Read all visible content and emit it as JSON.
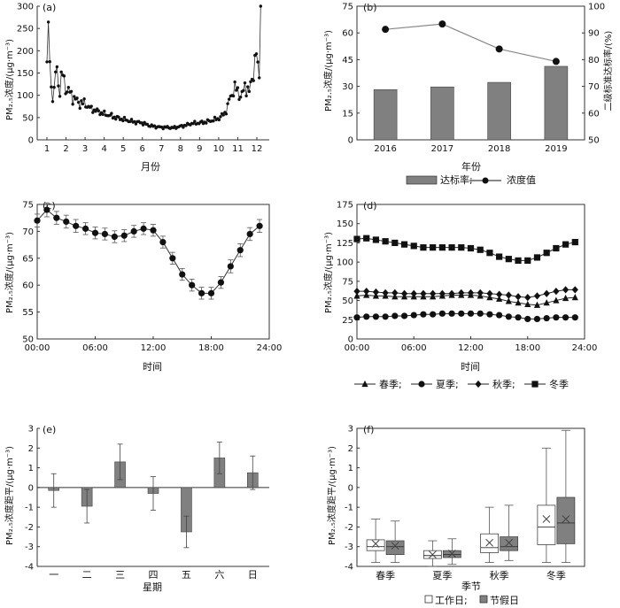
{
  "panels": {
    "a": {
      "label": "(a)",
      "ylabel": "PM₂.₅浓度/(μg·m⁻³)",
      "xlabel": "月份"
    },
    "b": {
      "label": "(b)",
      "ylabel_left": "PM₂.₅浓度/(μg·m⁻³)",
      "ylabel_right": "二级标准达标率/(%)",
      "xlabel": "年份",
      "legend_bar": "达标率;",
      "legend_line": "浓度值"
    },
    "c": {
      "label": "(c)",
      "ylabel": "PM₂.₅浓度/(μg·m⁻³)",
      "xlabel": "时间"
    },
    "d": {
      "label": "(d)",
      "ylabel": "PM₂.₅浓度/(μg·m⁻³)",
      "xlabel": "时间"
    },
    "e": {
      "label": "(e)",
      "ylabel": "PM₂.₅浓度距平/(μg·m⁻³)",
      "xlabel": "星期"
    },
    "f": {
      "label": "(f)",
      "ylabel": "PM₂.₅浓度距平/(μg·m⁻³)",
      "xlabel": "季节",
      "legend_work": "工作日;",
      "legend_holiday": "节假日"
    }
  },
  "chart_data": [
    {
      "id": "a",
      "type": "line",
      "x_ticks": [
        1,
        2,
        3,
        4,
        5,
        6,
        7,
        8,
        9,
        10,
        11,
        12
      ],
      "ylim": [
        0,
        300
      ],
      "yticks": [
        0,
        50,
        100,
        150,
        200,
        250,
        300
      ],
      "anchors_x": [
        1,
        1.05,
        1.1,
        1.2,
        1.35,
        1.5,
        1.65,
        1.8,
        2,
        2.3,
        2.6,
        3,
        3.3,
        3.6,
        4,
        4.3,
        4.6,
        5,
        5.3,
        5.6,
        6,
        6.3,
        6.6,
        7,
        7.3,
        7.6,
        8,
        8.3,
        8.6,
        9,
        9.3,
        9.6,
        10,
        10.2,
        10.4,
        10.6,
        10.8,
        11,
        11.2,
        11.4,
        11.6,
        11.8,
        12,
        12.1,
        12.2
      ],
      "anchors_y": [
        175,
        230,
        240,
        120,
        95,
        170,
        105,
        150,
        115,
        100,
        85,
        80,
        70,
        65,
        58,
        55,
        50,
        46,
        43,
        40,
        38,
        33,
        30,
        28,
        28,
        27,
        30,
        33,
        37,
        38,
        40,
        43,
        48,
        55,
        65,
        95,
        115,
        110,
        95,
        125,
        105,
        150,
        200,
        110,
        300
      ],
      "n_points": 150,
      "color": "#333333"
    },
    {
      "id": "b",
      "type": "bar+line",
      "categories": [
        "2016",
        "2017",
        "2018",
        "2019"
      ],
      "bar_values": [
        68.8,
        69.8,
        71.5,
        77.5
      ],
      "line_values": [
        62,
        65,
        51,
        44
      ],
      "ylim_left": [
        0,
        75
      ],
      "yticks_left": [
        0,
        15,
        30,
        45,
        60,
        75
      ],
      "ylim_right": [
        50,
        100
      ],
      "yticks_right": [
        50,
        60,
        70,
        80,
        90,
        100
      ],
      "bar_color": "#808080",
      "line_color": "#888888",
      "marker_color": "#111111"
    },
    {
      "id": "c",
      "type": "line",
      "x": [
        0,
        1,
        2,
        3,
        4,
        5,
        6,
        7,
        8,
        9,
        10,
        11,
        12,
        13,
        14,
        15,
        16,
        17,
        18,
        19,
        20,
        21,
        22,
        23
      ],
      "y": [
        72,
        74,
        72.5,
        71.8,
        71,
        70.5,
        69.7,
        69.5,
        69,
        69.2,
        70,
        70.5,
        70.2,
        68,
        65,
        62,
        60,
        58.5,
        58.5,
        60.5,
        63.5,
        66.5,
        69.5,
        71
      ],
      "err": [
        1.2,
        1.3,
        1.2,
        1.2,
        1.2,
        1.1,
        1.1,
        1.1,
        1.1,
        1.1,
        1.1,
        1.1,
        1.1,
        1.1,
        1.1,
        1.1,
        1.1,
        1.1,
        1.1,
        1.1,
        1.2,
        1.2,
        1.2,
        1.2
      ],
      "xtick_labels": [
        "00:00",
        "06:00",
        "12:00",
        "18:00",
        "24:00"
      ],
      "ylim": [
        50,
        75
      ],
      "yticks": [
        50,
        55,
        60,
        65,
        70,
        75
      ]
    },
    {
      "id": "d",
      "type": "line",
      "x": [
        0,
        1,
        2,
        3,
        4,
        5,
        6,
        7,
        8,
        9,
        10,
        11,
        12,
        13,
        14,
        15,
        16,
        17,
        18,
        19,
        20,
        21,
        22,
        23
      ],
      "series": [
        {
          "name": "春季",
          "marker": "triangle",
          "values": [
            56,
            57,
            56,
            56,
            55,
            55,
            55,
            55,
            55,
            56,
            57,
            57,
            57,
            56,
            54,
            52,
            49,
            47,
            45,
            44,
            47,
            50,
            53,
            54
          ]
        },
        {
          "name": "夏季",
          "marker": "circle",
          "values": [
            28,
            29,
            29,
            29,
            30,
            30,
            31,
            32,
            32,
            33,
            33,
            33,
            33,
            33,
            32,
            31,
            29,
            28,
            26,
            26,
            27,
            28,
            28,
            28
          ]
        },
        {
          "name": "秋季",
          "marker": "diamond",
          "values": [
            62,
            62,
            61,
            60,
            60,
            59,
            59,
            59,
            59,
            59,
            59,
            60,
            60,
            60,
            59,
            58,
            57,
            55,
            54,
            56,
            59,
            62,
            64,
            64
          ]
        },
        {
          "name": "冬季",
          "marker": "square",
          "values": [
            130,
            131,
            129,
            127,
            125,
            123,
            121,
            119,
            119,
            119,
            119,
            119,
            118,
            116,
            112,
            107,
            104,
            102,
            102,
            106,
            112,
            118,
            123,
            126
          ]
        }
      ],
      "xtick_labels": [
        "00:00",
        "06:00",
        "12:00",
        "18:00",
        "24:00"
      ],
      "ylim": [
        0,
        175
      ],
      "yticks": [
        0,
        25,
        50,
        75,
        100,
        125,
        150,
        175
      ]
    },
    {
      "id": "e",
      "type": "bar",
      "categories": [
        "一",
        "二",
        "三",
        "四",
        "五",
        "六",
        "日"
      ],
      "values": [
        -0.15,
        -0.95,
        1.3,
        -0.3,
        -2.25,
        1.5,
        0.75
      ],
      "err": [
        0.85,
        0.85,
        0.9,
        0.85,
        0.8,
        0.8,
        0.85
      ],
      "ylim": [
        -4,
        3
      ],
      "yticks": [
        -4,
        -3,
        -2,
        -1,
        0,
        1,
        2,
        3
      ],
      "bar_color": "#808080"
    },
    {
      "id": "f",
      "type": "box",
      "categories": [
        "春季",
        "夏季",
        "秋季",
        "冬季"
      ],
      "series": [
        {
          "name": "工作日",
          "fill": "#ffffff",
          "boxes": [
            {
              "min": -3.8,
              "q1": -3.2,
              "median": -3.0,
              "q3": -2.65,
              "max": -1.6,
              "mean": -2.85
            },
            {
              "min": -4.0,
              "q1": -3.6,
              "median": -3.45,
              "q3": -3.2,
              "max": -2.7,
              "mean": -3.4
            },
            {
              "min": -3.8,
              "q1": -3.3,
              "median": -3.05,
              "q3": -2.35,
              "max": -1.0,
              "mean": -2.8
            },
            {
              "min": -3.8,
              "q1": -2.9,
              "median": -2.0,
              "q3": -0.9,
              "max": 2.0,
              "mean": -1.6
            }
          ]
        },
        {
          "name": "节假日",
          "fill": "#808080",
          "boxes": [
            {
              "min": -3.8,
              "q1": -3.4,
              "median": -3.0,
              "q3": -2.7,
              "max": -1.7,
              "mean": -2.95
            },
            {
              "min": -3.9,
              "q1": -3.55,
              "median": -3.4,
              "q3": -3.2,
              "max": -2.6,
              "mean": -3.35
            },
            {
              "min": -3.7,
              "q1": -3.2,
              "median": -3.0,
              "q3": -2.5,
              "max": -0.9,
              "mean": -2.8
            },
            {
              "min": -3.8,
              "q1": -2.85,
              "median": -1.8,
              "q3": -0.5,
              "max": 2.9,
              "mean": -1.6
            }
          ]
        }
      ],
      "ylim": [
        -4,
        3
      ],
      "yticks": [
        -4,
        -3,
        -2,
        -1,
        0,
        1,
        2,
        3
      ]
    }
  ]
}
